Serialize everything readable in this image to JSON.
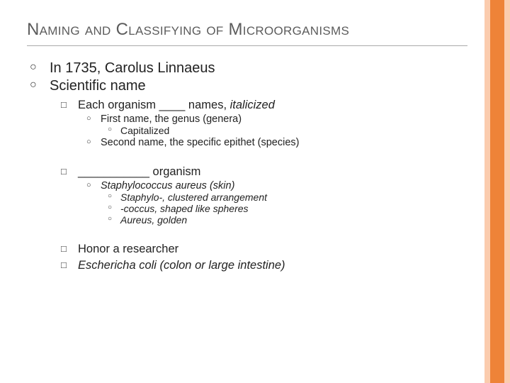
{
  "title": "Naming and Classifying of Microorganisms",
  "bullets": {
    "b1": "In 1735, Carolus Linnaeus",
    "b2": "Scientific name",
    "b2_1_pre": "Each organism ____ names, ",
    "b2_1_em": "italicized",
    "b2_1_1": "First name, the genus (genera)",
    "b2_1_1_1": "Capitalized",
    "b2_1_2": "Second name, the specific epithet (species)",
    "b2_2": "___________ organism",
    "b2_2_1": "Staphylococcus aureus (skin)",
    "b2_2_1_1": "Staphylo-, clustered arrangement",
    "b2_2_1_2": "-coccus, shaped like spheres",
    "b2_2_1_3": "Aureus, golden",
    "b2_3": "Honor a researcher",
    "b2_4": "Eschericha coli (colon or large intestine)"
  },
  "colors": {
    "band_outer": "#fbccae",
    "band_inner": "#ee8338",
    "title_color": "#5c5c5c",
    "text_color": "#222222"
  }
}
